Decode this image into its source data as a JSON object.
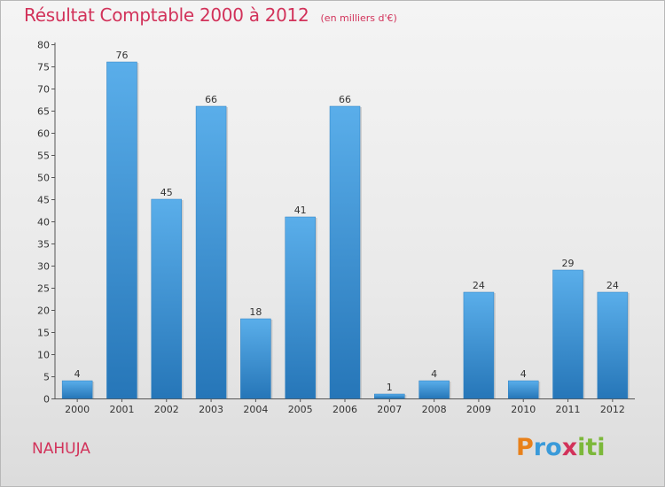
{
  "chart_data": {
    "type": "bar",
    "title": "Résultat Comptable 2000 à 2012",
    "subtitle": "(en milliers d'€)",
    "categories": [
      "2000",
      "2001",
      "2002",
      "2003",
      "2004",
      "2005",
      "2006",
      "2007",
      "2008",
      "2009",
      "2010",
      "2011",
      "2012"
    ],
    "values": [
      4,
      76,
      45,
      66,
      18,
      41,
      66,
      1,
      4,
      24,
      4,
      29,
      24
    ],
    "ylim": [
      0,
      80
    ],
    "yticks": [
      0,
      5,
      10,
      15,
      20,
      25,
      30,
      35,
      40,
      45,
      50,
      55,
      60,
      65,
      70,
      75,
      80
    ],
    "xlabel": "",
    "ylabel": "",
    "grid": false,
    "bar_color": "#3d95d8"
  },
  "commune": "NAHUJA",
  "logo": {
    "letters": [
      "P",
      "r",
      "o",
      "x",
      "i",
      "t",
      "i"
    ],
    "colors": [
      "#e8801a",
      "#3a9ad9",
      "#3a9ad9",
      "#d2325a",
      "#7cb83a",
      "#7cb83a",
      "#7cb83a"
    ]
  }
}
